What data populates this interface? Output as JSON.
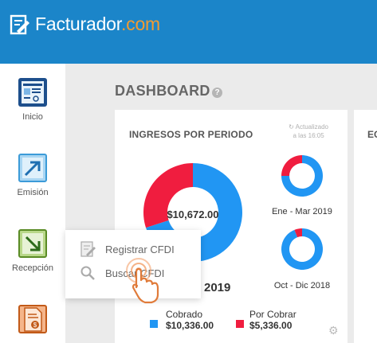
{
  "header": {
    "brand_main": "Facturador",
    "brand_domain": ".com",
    "logo_icon": "document-pencil-icon"
  },
  "sidebar": {
    "items": [
      {
        "label": "Inicio",
        "icon": "dashboard-screen-icon"
      },
      {
        "label": "Emisión",
        "icon": "send-document-icon"
      },
      {
        "label": "Recepción",
        "icon": "receive-document-icon"
      },
      {
        "label": "",
        "icon": "invoice-dollar-icon"
      }
    ]
  },
  "page": {
    "title": "DASHBOARD",
    "help": "?"
  },
  "card": {
    "title": "INGRESOS POR PERIODO",
    "updated_line1": "Actualizado",
    "updated_line2": "a las 16:05",
    "big_amount": "$10,672.00",
    "year": "2019",
    "small1_label": "Ene - Mar 2019",
    "small2_label": "Oct - Dic 2018",
    "legend": [
      {
        "label": "Cobrado",
        "amount": "$10,336.00",
        "color": "#2196f3"
      },
      {
        "label": "Por Cobrar",
        "amount": "$5,336.00",
        "color": "#f01d3f"
      }
    ]
  },
  "card2": {
    "title": "EC"
  },
  "popup": {
    "items": [
      {
        "label": "Registrar CFDI",
        "icon": "register-document-icon"
      },
      {
        "label": "Buscar CFDI",
        "icon": "search-icon"
      }
    ]
  },
  "colors": {
    "header_blue": "#1b85c9",
    "brand_orange": "#f39b2f",
    "cobrado_blue": "#2196f3",
    "por_cobrar_red": "#f01d3f"
  },
  "chart_data": [
    {
      "type": "pie",
      "title": "",
      "center_label": "$10,672.00",
      "categories": [
        "Cobrado",
        "Por Cobrar"
      ],
      "values": [
        0.7,
        0.3
      ]
    },
    {
      "type": "pie",
      "title": "Ene - Mar 2019",
      "categories": [
        "Cobrado",
        "Por Cobrar"
      ],
      "values": [
        0.75,
        0.25
      ]
    },
    {
      "type": "pie",
      "title": "Oct - Dic 2018",
      "categories": [
        "Cobrado",
        "Por Cobrar"
      ],
      "values": [
        0.94,
        0.06
      ]
    }
  ]
}
